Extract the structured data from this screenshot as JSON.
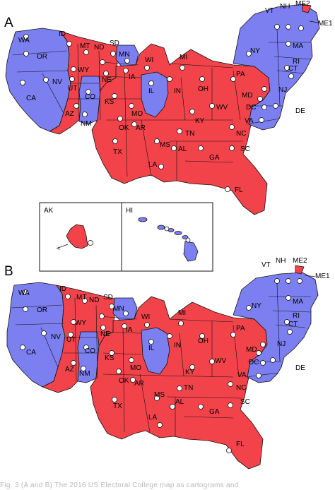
{
  "colors": {
    "red": "#f2434b",
    "blue": "#7b7ff0",
    "border": "#111111",
    "dot_fill": "#ffffff"
  },
  "panels": [
    {
      "letter": "A"
    },
    {
      "letter": "B"
    }
  ],
  "insets": {
    "alaska_label": "AK",
    "hawaii_label": "HI"
  },
  "states": [
    {
      "abbr": "WA",
      "winner": "blue"
    },
    {
      "abbr": "OR",
      "winner": "blue"
    },
    {
      "abbr": "CA",
      "winner": "blue"
    },
    {
      "abbr": "NV",
      "winner": "blue"
    },
    {
      "abbr": "ID",
      "winner": "red"
    },
    {
      "abbr": "MT",
      "winner": "red"
    },
    {
      "abbr": "WY",
      "winner": "red"
    },
    {
      "abbr": "UT",
      "winner": "red"
    },
    {
      "abbr": "AZ",
      "winner": "red"
    },
    {
      "abbr": "CO",
      "winner": "blue"
    },
    {
      "abbr": "NM",
      "winner": "blue"
    },
    {
      "abbr": "ND",
      "winner": "red"
    },
    {
      "abbr": "SD",
      "winner": "red"
    },
    {
      "abbr": "NE",
      "winner": "red"
    },
    {
      "abbr": "KS",
      "winner": "red"
    },
    {
      "abbr": "OK",
      "winner": "red"
    },
    {
      "abbr": "TX",
      "winner": "red"
    },
    {
      "abbr": "MN",
      "winner": "blue"
    },
    {
      "abbr": "IA",
      "winner": "red"
    },
    {
      "abbr": "MO",
      "winner": "red"
    },
    {
      "abbr": "AR",
      "winner": "red"
    },
    {
      "abbr": "LA",
      "winner": "red"
    },
    {
      "abbr": "WI",
      "winner": "red"
    },
    {
      "abbr": "IL",
      "winner": "blue"
    },
    {
      "abbr": "MI",
      "winner": "red"
    },
    {
      "abbr": "IN",
      "winner": "red"
    },
    {
      "abbr": "OH",
      "winner": "red"
    },
    {
      "abbr": "KY",
      "winner": "red"
    },
    {
      "abbr": "TN",
      "winner": "red"
    },
    {
      "abbr": "MS",
      "winner": "red"
    },
    {
      "abbr": "AL",
      "winner": "red"
    },
    {
      "abbr": "GA",
      "winner": "red"
    },
    {
      "abbr": "FL",
      "winner": "red"
    },
    {
      "abbr": "SC",
      "winner": "red"
    },
    {
      "abbr": "NC",
      "winner": "red"
    },
    {
      "abbr": "VA",
      "winner": "blue"
    },
    {
      "abbr": "WV",
      "winner": "red"
    },
    {
      "abbr": "PA",
      "winner": "red"
    },
    {
      "abbr": "NY",
      "winner": "blue"
    },
    {
      "abbr": "VT",
      "winner": "blue"
    },
    {
      "abbr": "NH",
      "winner": "blue"
    },
    {
      "abbr": "ME1",
      "winner": "blue"
    },
    {
      "abbr": "ME2",
      "winner": "red"
    },
    {
      "abbr": "MA",
      "winner": "blue"
    },
    {
      "abbr": "RI",
      "winner": "blue"
    },
    {
      "abbr": "CT",
      "winner": "blue"
    },
    {
      "abbr": "NJ",
      "winner": "blue"
    },
    {
      "abbr": "DE",
      "winner": "blue"
    },
    {
      "abbr": "MD",
      "winner": "blue"
    },
    {
      "abbr": "DC",
      "winner": "blue"
    }
  ],
  "caption": "Fig. 3 (A and B) The 2016 US Electoral College map as cartograms and"
}
